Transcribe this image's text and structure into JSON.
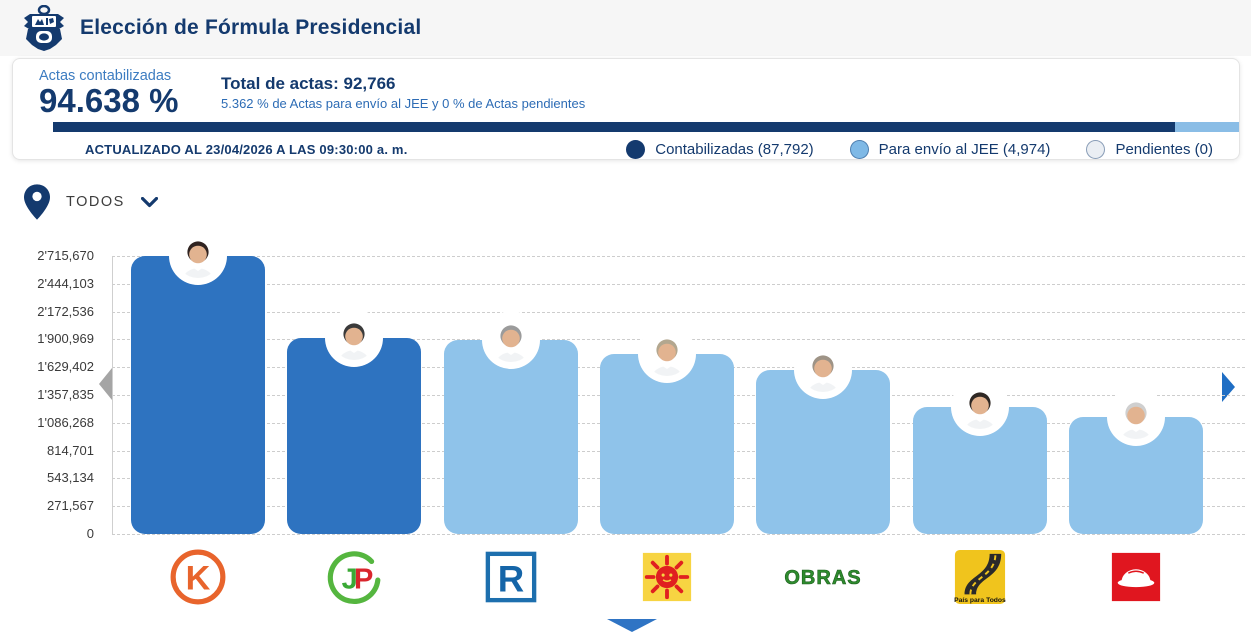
{
  "header": {
    "title": "Elección de Fórmula Presidencial",
    "logo": "peru-coat-of-arms"
  },
  "stats": {
    "label": "Actas contabilizadas",
    "percent": "94.638 %",
    "progress_percent": 94.638,
    "total_label": "Total de actas: 92,766",
    "subtitle": "5.362 % de Actas para envío al JEE y 0 % de Actas pendientes",
    "updated": "ACTUALIZADO AL 23/04/2026 A LAS 09:30:00 a. m.",
    "legend": [
      {
        "label": "Contabilizadas (87,792)",
        "color": "#143a6e"
      },
      {
        "label": "Para envío al JEE (4,974)",
        "color": "#7fb9e6"
      },
      {
        "label": "Pendientes (0)",
        "color": "#eaeef3"
      }
    ]
  },
  "filter": {
    "selected": "TODOS",
    "pin_icon": "location-pin",
    "chevron_icon": "chevron-down"
  },
  "colors": {
    "navy": "#143a6e",
    "bar_dark": "#2e73c0",
    "bar_light": "#8fc3ea",
    "progress_light": "#8abde6",
    "scroll_left_arrow": "#a5a5a5",
    "scroll_right_arrow": "#1f6ec4",
    "down_arrow": "#2f74c4"
  },
  "chart_data": {
    "type": "bar",
    "ylabel": "",
    "xlabel": "",
    "ylim": [
      0,
      2715670
    ],
    "grid": "horizontal-dashed",
    "y_ticks": [
      "2'715,670",
      "2'444,103",
      "2'172,536",
      "1'900,969",
      "1'629,402",
      "1'357,835",
      "1'086,268",
      "814,701",
      "543,134",
      "271,567",
      "0"
    ],
    "candidates": [
      {
        "logo": "k-orange-circle",
        "logo_text": "K",
        "votes": 2715670,
        "bar_color": "#2e73c0",
        "hair": "#2f2320"
      },
      {
        "logo": "jp-green-circle",
        "logo_text": "JP",
        "votes": 1915000,
        "bar_color": "#2e73c0",
        "hair": "#3a3a3a"
      },
      {
        "logo": "r-blue-square",
        "logo_text": "R",
        "votes": 1898000,
        "bar_color": "#8fc3ea",
        "hair": "#9b9b9b"
      },
      {
        "logo": "sun-yellow-square",
        "logo_text": "",
        "votes": 1762000,
        "bar_color": "#8fc3ea",
        "hair": "#b3a78f"
      },
      {
        "logo": "obras-green-text",
        "logo_text": "OBRAS",
        "votes": 1603000,
        "bar_color": "#8fc3ea",
        "hair": "#9e9386"
      },
      {
        "logo": "road-yellow-square",
        "logo_text": "País para Todos",
        "votes": 1243000,
        "bar_color": "#8fc3ea",
        "hair": "#2f2824"
      },
      {
        "logo": "hardhat-red-square",
        "logo_text": "",
        "votes": 1141000,
        "bar_color": "#8fc3ea",
        "hair": "#cfcfcf"
      }
    ]
  }
}
